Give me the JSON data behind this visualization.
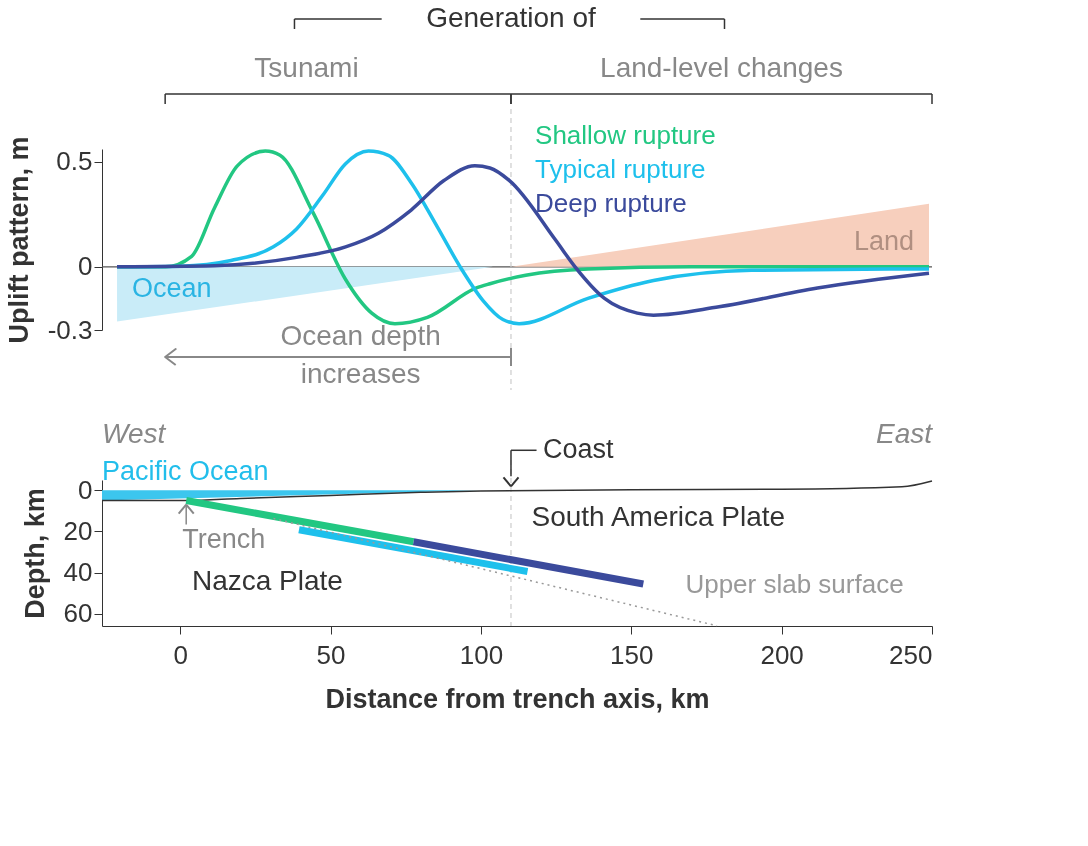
{
  "chart_data": [
    {
      "type": "line",
      "ylabel": "Uplift pattern, m",
      "xlim": [
        -26,
        250
      ],
      "ylim": [
        -0.3,
        0.56
      ],
      "yticks": [
        -0.3,
        0,
        0.5
      ],
      "tick_labels": "y",
      "series": [
        {
          "name": "Ocean",
          "type": "area",
          "color": "#c9ecf8",
          "x": [
            -21,
            104
          ],
          "values": [
            -0.26,
            0
          ]
        },
        {
          "name": "Land",
          "type": "area",
          "color": "#f7cfbd",
          "x": [
            110,
            249
          ],
          "values": [
            0,
            0.3
          ]
        },
        {
          "name": "Shallow rupture",
          "color": "#22c782",
          "x": [
            -21,
            -4.9,
            3.8,
            11.4,
            19,
            28.3,
            33.2,
            44.1,
            55,
            63.7,
            71.4,
            82.2,
            98.5,
            103,
            114.9,
            135.6,
            170,
            249
          ],
          "values": [
            0,
            0,
            0.05,
            0.28,
            0.48,
            0.55,
            0.53,
            0.26,
            -0.06,
            -0.22,
            -0.27,
            -0.24,
            -0.1,
            -0.08,
            -0.04,
            -0.01,
            0,
            0
          ]
        },
        {
          "name": "Typical rupture",
          "color": "#1ec0ec",
          "x": [
            -21,
            0,
            16.9,
            31,
            38.7,
            47.4,
            55,
            62.6,
            69.2,
            76.8,
            85.5,
            93.1,
            100.7,
            107.3,
            112.7,
            135.6,
            157.4,
            190,
            249
          ],
          "values": [
            0,
            0.003,
            0.03,
            0.095,
            0.18,
            0.34,
            0.49,
            0.55,
            0.53,
            0.4,
            0.19,
            0,
            -0.16,
            -0.25,
            -0.27,
            -0.15,
            -0.065,
            -0.016,
            -0.01
          ]
        },
        {
          "name": "Deep rupture",
          "color": "#3b4a9c",
          "x": [
            -21,
            11.4,
            38.7,
            55,
            65.9,
            76.8,
            87.7,
            98,
            103,
            109.5,
            124.7,
            131.3,
            141.1,
            152,
            157.4,
            179.2,
            211.9,
            249
          ],
          "values": [
            0,
            0.005,
            0.045,
            0.095,
            0.16,
            0.27,
            0.41,
            0.48,
            0.47,
            0.41,
            0.13,
            0,
            -0.15,
            -0.22,
            -0.23,
            -0.19,
            -0.1,
            -0.03
          ]
        }
      ],
      "ref_lines": [
        {
          "axis": "y",
          "value": 0,
          "color": "#555555"
        },
        {
          "axis": "x",
          "value": 110,
          "color": "#cccccc",
          "line_style": "dashed"
        }
      ],
      "annotations": [
        "Generation of",
        "Tsunami",
        "Land-level changes",
        "Ocean depth\nincreases"
      ]
    },
    {
      "type": "line",
      "xlabel": "Distance from trench axis, km",
      "ylabel": "Depth, km",
      "xlim": [
        -26,
        250
      ],
      "xticks": [
        0,
        50,
        100,
        150,
        200,
        250
      ],
      "ylim": [
        66,
        -5
      ],
      "yticks": [
        0,
        20,
        40,
        60
      ],
      "series": [
        {
          "name": "Pacific Ocean",
          "type": "area",
          "color": "#3cc6ee",
          "x": [
            -26,
            100
          ],
          "values": [
            5,
            0
          ]
        },
        {
          "color": "#333333",
          "x": [
            -26,
            2,
            20,
            50,
            80,
            100,
            150,
            200,
            240,
            250
          ],
          "values": [
            5,
            5,
            4,
            2.5,
            1,
            0.3,
            -0.3,
            -0.5,
            -1.7,
            -4.5
          ]
        },
        {
          "color": "#22c782",
          "x": [
            2,
            77.6
          ],
          "values": [
            5,
            25
          ]
        },
        {
          "color": "#1ec0ec",
          "x": [
            39.5,
            115.5
          ],
          "values": [
            19.2,
            39.5
          ]
        },
        {
          "color": "#3b4a9c",
          "x": [
            77.6,
            154
          ],
          "values": [
            25,
            45.6
          ]
        },
        {
          "name": "Upper slab surface",
          "color": "#999999",
          "line_style": "dotted",
          "x": [
            31,
            178.5
          ],
          "values": [
            13.7,
            65.9
          ]
        }
      ],
      "ref_lines": [
        {
          "axis": "x",
          "value": 110,
          "color": "#cccccc",
          "line_style": "dashed"
        }
      ],
      "annotations": [
        "West",
        "East",
        {
          "text": "Coast",
          "x": 110,
          "y": 0
        },
        {
          "text": "Trench",
          "x": 2,
          "y": 5
        },
        "South America Plate",
        "Nazca Plate"
      ]
    }
  ]
}
